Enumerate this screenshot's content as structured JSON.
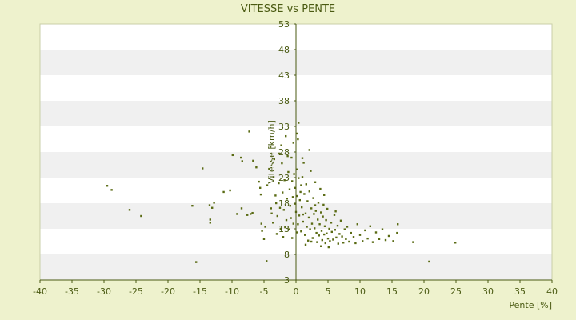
{
  "chart_data": {
    "type": "scatter",
    "title": "VITESSE vs PENTE",
    "xlabel": "Pente [%]",
    "ylabel": "Vitesse [km/h]",
    "xlim": [
      -40,
      40
    ],
    "ylim": [
      3,
      53
    ],
    "x_ticks": [
      -40,
      -35,
      -30,
      -25,
      -20,
      -15,
      -10,
      -5,
      0,
      5,
      10,
      15,
      20,
      25,
      30,
      35,
      40
    ],
    "y_ticks": [
      3,
      8,
      13,
      18,
      23,
      28,
      33,
      38,
      43,
      48,
      53
    ],
    "grid": "horizontal alternating bands",
    "legend": "none",
    "colors": {
      "point": "#5a6b14",
      "band_light": "#ffffff",
      "band_dark": "#f0f0f0",
      "axis": "#4a5a12",
      "background": "#eef2cd"
    },
    "series": [
      {
        "points": [
          [
            -29.5,
            21.4
          ],
          [
            -28.8,
            20.6
          ],
          [
            -26.0,
            16.7
          ],
          [
            -24.2,
            15.5
          ],
          [
            -16.2,
            17.5
          ],
          [
            -15.6,
            6.5
          ],
          [
            -14.6,
            24.8
          ],
          [
            -13.5,
            17.6
          ],
          [
            -13.1,
            17.1
          ],
          [
            -13.4,
            14.8
          ],
          [
            -13.4,
            14.2
          ],
          [
            -12.8,
            18.1
          ],
          [
            -11.3,
            20.2
          ],
          [
            -10.3,
            20.5
          ],
          [
            -9.9,
            27.4
          ],
          [
            -9.2,
            15.9
          ],
          [
            -8.6,
            26.9
          ],
          [
            -8.4,
            26.2
          ],
          [
            -8.5,
            17.0
          ],
          [
            -7.6,
            15.7
          ],
          [
            -7.3,
            32.0
          ],
          [
            -7.1,
            15.9
          ],
          [
            -6.8,
            16.1
          ],
          [
            -6.7,
            26.3
          ],
          [
            -6.2,
            25.0
          ],
          [
            -5.8,
            22.2
          ],
          [
            -5.6,
            21.0
          ],
          [
            -5.5,
            19.7
          ],
          [
            -5.4,
            14.0
          ],
          [
            -5.3,
            12.6
          ],
          [
            -5.0,
            11.0
          ],
          [
            -4.6,
            6.7
          ],
          [
            -4.8,
            13.4
          ],
          [
            -4.5,
            21.5
          ],
          [
            -4.2,
            24.7
          ],
          [
            -4.0,
            29.0
          ],
          [
            -3.9,
            17.0
          ],
          [
            -3.8,
            16.0
          ],
          [
            -3.6,
            14.2
          ],
          [
            -3.5,
            23.1
          ],
          [
            -3.4,
            26.6
          ],
          [
            -3.2,
            19.5
          ],
          [
            -3.1,
            18.0
          ],
          [
            -3.0,
            12.0
          ],
          [
            -2.9,
            15.5
          ],
          [
            -2.7,
            21.9
          ],
          [
            -2.6,
            27.7
          ],
          [
            -2.5,
            17.1
          ],
          [
            -2.4,
            13.0
          ],
          [
            -2.2,
            25.8
          ],
          [
            -2.1,
            20.1
          ],
          [
            -2.0,
            11.4
          ],
          [
            -1.9,
            16.7
          ],
          [
            -1.8,
            22.5
          ],
          [
            -1.6,
            31.1
          ],
          [
            -1.5,
            14.7
          ],
          [
            -1.4,
            18.9
          ],
          [
            -1.2,
            24.1
          ],
          [
            -1.1,
            12.9
          ],
          [
            -1.0,
            20.7
          ],
          [
            -0.9,
            17.5
          ],
          [
            -0.8,
            15.1
          ],
          [
            -0.7,
            26.9
          ],
          [
            -0.6,
            22.3
          ],
          [
            -0.5,
            19.2
          ],
          [
            -0.4,
            14.0
          ],
          [
            -0.3,
            23.7
          ],
          [
            -0.2,
            17.9
          ],
          [
            -0.1,
            21.0
          ],
          [
            0.0,
            16.3
          ],
          [
            0.1,
            24.6
          ],
          [
            0.1,
            31.6
          ],
          [
            0.2,
            19.4
          ],
          [
            0.3,
            13.9
          ],
          [
            0.3,
            30.5
          ],
          [
            0.4,
            22.9
          ],
          [
            0.5,
            15.6
          ],
          [
            0.6,
            18.6
          ],
          [
            0.7,
            20.2
          ],
          [
            0.8,
            12.5
          ],
          [
            0.9,
            17.2
          ],
          [
            1.0,
            23.1
          ],
          [
            1.1,
            14.4
          ],
          [
            1.2,
            25.9
          ],
          [
            1.3,
            19.8
          ],
          [
            1.4,
            11.8
          ],
          [
            1.5,
            16.0
          ],
          [
            1.6,
            21.7
          ],
          [
            1.7,
            13.4
          ],
          [
            1.8,
            18.4
          ],
          [
            1.9,
            10.7
          ],
          [
            2.0,
            15.2
          ],
          [
            2.1,
            20.3
          ],
          [
            2.2,
            12.9
          ],
          [
            2.3,
            24.3
          ],
          [
            2.4,
            17.0
          ],
          [
            2.5,
            14.0
          ],
          [
            2.6,
            11.2
          ],
          [
            2.7,
            19.0
          ],
          [
            2.8,
            15.9
          ],
          [
            2.9,
            13.1
          ],
          [
            3.0,
            22.1
          ],
          [
            3.1,
            16.5
          ],
          [
            3.2,
            12.2
          ],
          [
            3.3,
            10.4
          ],
          [
            3.4,
            14.8
          ],
          [
            3.5,
            18.1
          ],
          [
            3.6,
            11.7
          ],
          [
            3.7,
            13.9
          ],
          [
            3.8,
            20.8
          ],
          [
            3.9,
            16.2
          ],
          [
            4.0,
            12.6
          ],
          [
            4.1,
            10.8
          ],
          [
            4.2,
            15.4
          ],
          [
            4.3,
            17.7
          ],
          [
            4.4,
            11.9
          ],
          [
            4.5,
            13.5
          ],
          [
            4.6,
            10.2
          ],
          [
            4.7,
            14.7
          ],
          [
            4.8,
            12.1
          ],
          [
            4.9,
            16.9
          ],
          [
            5.0,
            11.1
          ],
          [
            5.2,
            13.0
          ],
          [
            5.3,
            10.6
          ],
          [
            5.5,
            14.2
          ],
          [
            5.6,
            12.4
          ],
          [
            5.8,
            10.9
          ],
          [
            6.0,
            15.7
          ],
          [
            6.1,
            12.8
          ],
          [
            6.3,
            11.3
          ],
          [
            6.5,
            13.6
          ],
          [
            6.6,
            10.1
          ],
          [
            6.8,
            12.0
          ],
          [
            7.0,
            14.6
          ],
          [
            7.2,
            11.5
          ],
          [
            7.4,
            10.3
          ],
          [
            7.6,
            12.9
          ],
          [
            7.8,
            11.0
          ],
          [
            8.0,
            13.4
          ],
          [
            8.3,
            10.5
          ],
          [
            8.6,
            12.2
          ],
          [
            9.0,
            11.4
          ],
          [
            9.3,
            10.2
          ],
          [
            9.6,
            13.9
          ],
          [
            10.0,
            11.8
          ],
          [
            10.4,
            10.6
          ],
          [
            10.8,
            12.7
          ],
          [
            11.2,
            11.1
          ],
          [
            11.6,
            13.5
          ],
          [
            12.0,
            10.4
          ],
          [
            12.5,
            12.3
          ],
          [
            13.0,
            11.0
          ],
          [
            13.5,
            12.9
          ],
          [
            14.0,
            10.8
          ],
          [
            14.5,
            11.6
          ],
          [
            15.2,
            10.6
          ],
          [
            15.8,
            12.2
          ],
          [
            15.9,
            13.9
          ],
          [
            18.3,
            10.4
          ],
          [
            20.8,
            6.6
          ],
          [
            24.9,
            10.3
          ],
          [
            0.4,
            33.7
          ],
          [
            -1.3,
            27.2
          ],
          [
            1.0,
            26.8
          ],
          [
            -0.4,
            29.8
          ],
          [
            2.1,
            28.4
          ],
          [
            -2.3,
            29.3
          ],
          [
            0.8,
            21.5
          ],
          [
            1.5,
            9.9
          ],
          [
            3.9,
            9.6
          ],
          [
            5.1,
            9.4
          ],
          [
            0.2,
            12.3
          ],
          [
            -0.6,
            11.2
          ],
          [
            2.4,
            10.5
          ],
          [
            -1.7,
            13.3
          ],
          [
            1.1,
            15.8
          ],
          [
            3.0,
            17.6
          ],
          [
            4.4,
            19.6
          ],
          [
            6.2,
            16.4
          ]
        ]
      }
    ]
  }
}
